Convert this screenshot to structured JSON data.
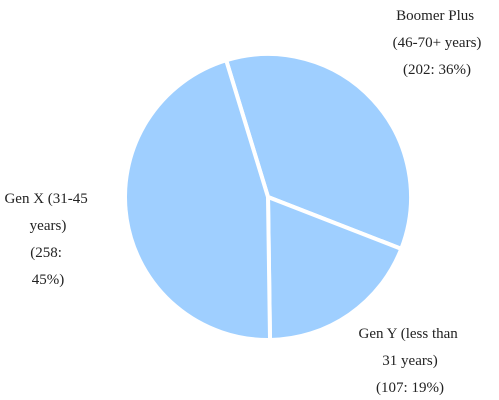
{
  "chart_data": {
    "type": "pie",
    "categories": [
      "Boomer Plus (46-70+ years)",
      "Gen Y (less than 31 years)",
      "Gen X (31-45 years)"
    ],
    "values": [
      202,
      107,
      258
    ],
    "value_labels": [
      "(202: 36%)",
      "(107: 19%)",
      "(258: 45%)"
    ],
    "color": "#9fcfff"
  }
}
